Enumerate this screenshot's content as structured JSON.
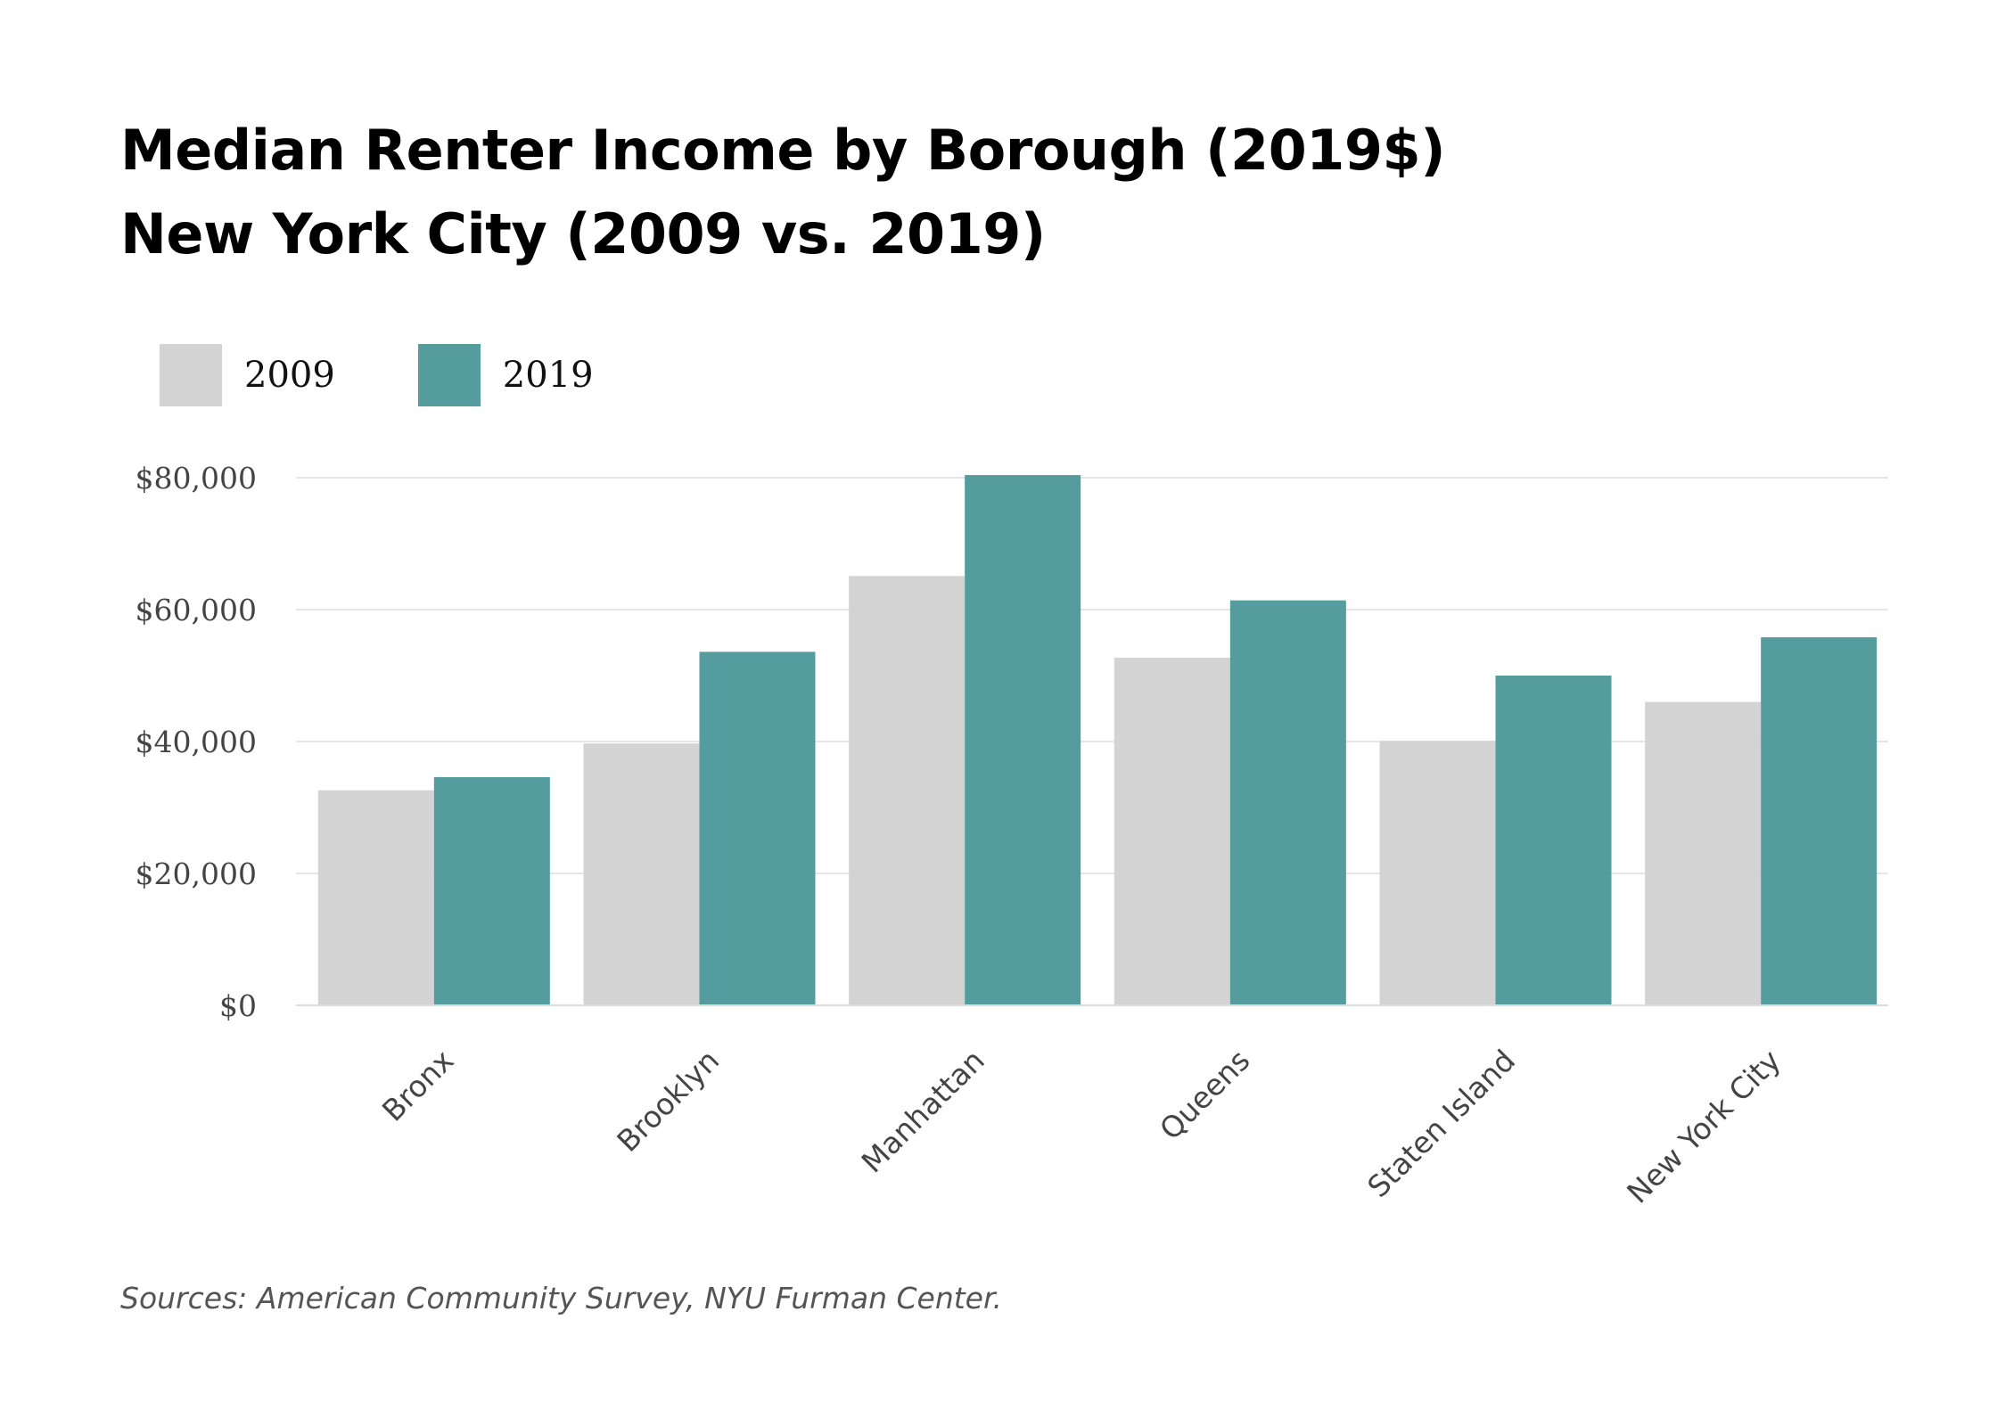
{
  "chart_data": {
    "type": "bar",
    "title": "Median Renter Income by Borough (2019$)",
    "subtitle": "New York City (2009 vs. 2019)",
    "categories": [
      "Bronx",
      "Brooklyn",
      "Manhattan",
      "Queens",
      "Staten Island",
      "New York City"
    ],
    "series": [
      {
        "name": "2009",
        "color": "#d3d3d3",
        "values": [
          32600,
          39700,
          65100,
          52700,
          40100,
          46000
        ]
      },
      {
        "name": "2019",
        "color": "#559c9e",
        "values": [
          34600,
          53600,
          80400,
          61400,
          50000,
          55800
        ]
      }
    ],
    "ylim": [
      0,
      80000
    ],
    "yticks": [
      0,
      20000,
      40000,
      60000,
      80000
    ],
    "ytick_labels": [
      "$0",
      "$20,000",
      "$40,000",
      "$60,000",
      "$80,000"
    ],
    "xlabel": "",
    "ylabel": "",
    "grid": true,
    "legend_position": "top-left",
    "source": "Sources: American Community Survey, NYU Furman Center."
  }
}
